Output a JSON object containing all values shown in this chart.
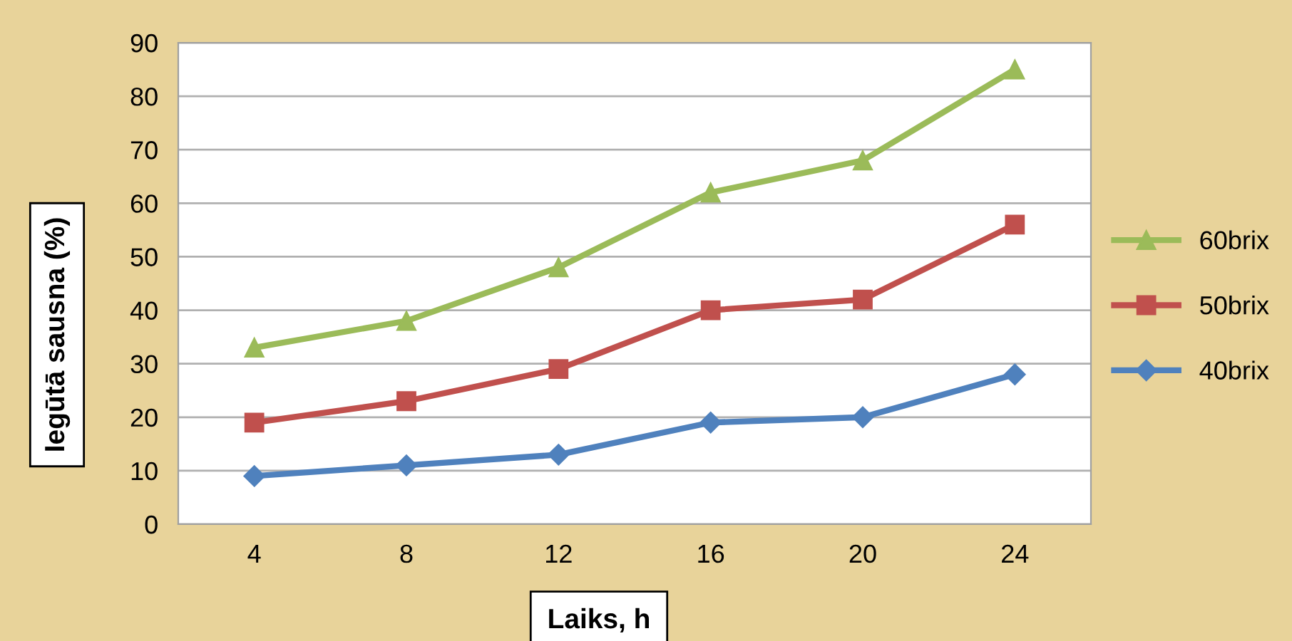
{
  "chart_data": {
    "type": "line",
    "xlabel": "Laiks, h",
    "ylabel": "Iegūtā sausna (%)",
    "categories": [
      "4",
      "8",
      "12",
      "16",
      "20",
      "24"
    ],
    "series": [
      {
        "name": "60brix",
        "color": "#9bbb59",
        "marker": "triangle",
        "values": [
          33,
          38,
          48,
          62,
          68,
          85
        ]
      },
      {
        "name": "50brix",
        "color": "#c0504d",
        "marker": "square",
        "values": [
          19,
          23,
          29,
          40,
          42,
          56
        ]
      },
      {
        "name": "40brix",
        "color": "#4f81bd",
        "marker": "diamond",
        "values": [
          9,
          11,
          13,
          19,
          20,
          28
        ]
      }
    ],
    "ylim": [
      0,
      90
    ],
    "yticks": [
      0,
      10,
      20,
      30,
      40,
      50,
      60,
      70,
      80,
      90
    ],
    "grid": "y",
    "legend": "right"
  }
}
